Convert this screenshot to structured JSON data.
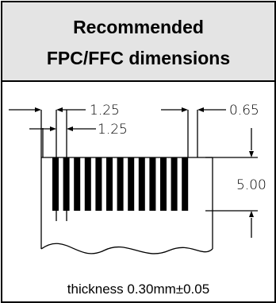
{
  "header": {
    "title_line1": "Recommended",
    "title_line2": "FPC/FFC dimensions"
  },
  "dimensions": {
    "pitch_outer": "1.25",
    "pitch_inner": "1.25",
    "edge_offset": "0.65",
    "contact_length": "5.00"
  },
  "caption": "thickness 0.30mm±0.05",
  "colors": {
    "header_bg": "#e4e4e4",
    "stroke": "#000000"
  }
}
